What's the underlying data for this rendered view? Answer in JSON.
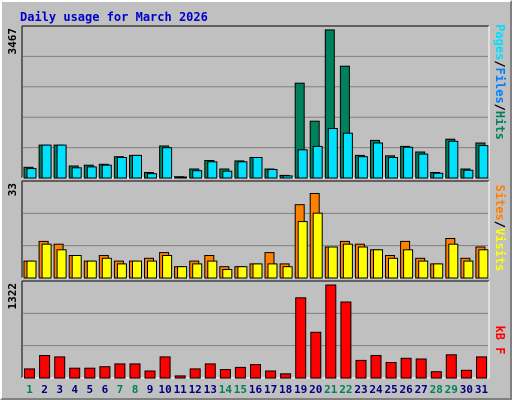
{
  "title": "Daily usage for March 2026",
  "colors": {
    "hits": "#00805C",
    "files": "#0080FF",
    "pages": "#00E0FF",
    "visits": "#FFFF00",
    "sites": "#FF8000",
    "kbytes": "#FF0000",
    "weekend": "#00805C",
    "weekday": "#000080",
    "panel": "#C0C0C0",
    "grid": "#808080"
  },
  "chart_data": [
    {
      "type": "bar",
      "panel": "top",
      "axis_max_label": "3467",
      "ylim": [
        0,
        3467
      ],
      "ylabel": {
        "pages": "Pages",
        "sep1": "/",
        "files": "Files",
        "sep2": "/",
        "hits": "Hits"
      },
      "categories": [
        "1",
        "2",
        "3",
        "4",
        "5",
        "6",
        "7",
        "8",
        "9",
        "10",
        "11",
        "12",
        "13",
        "14",
        "15",
        "16",
        "17",
        "18",
        "19",
        "20",
        "21",
        "22",
        "23",
        "24",
        "25",
        "26",
        "27",
        "28",
        "29",
        "30",
        "31"
      ],
      "series": [
        {
          "name": "Hits",
          "values": [
            250,
            770,
            770,
            280,
            300,
            320,
            500,
            530,
            130,
            750,
            30,
            210,
            410,
            210,
            400,
            480,
            210,
            60,
            2220,
            1330,
            3470,
            2620,
            530,
            880,
            520,
            740,
            610,
            130,
            910,
            210,
            820
          ]
        },
        {
          "name": "Pages",
          "values": [
            220,
            770,
            770,
            240,
            260,
            300,
            480,
            530,
            100,
            710,
            10,
            170,
            380,
            160,
            380,
            480,
            200,
            50,
            660,
            740,
            1160,
            1050,
            500,
            820,
            480,
            720,
            560,
            110,
            860,
            180,
            760
          ]
        }
      ]
    },
    {
      "type": "bar",
      "panel": "middle",
      "axis_max_label": "33",
      "ylim": [
        0,
        33
      ],
      "ylabel": {
        "sites": "Sites",
        "sep": "/",
        "visits": "Visits"
      },
      "categories": [
        "1",
        "2",
        "3",
        "4",
        "5",
        "6",
        "7",
        "8",
        "9",
        "10",
        "11",
        "12",
        "13",
        "14",
        "15",
        "16",
        "17",
        "18",
        "19",
        "20",
        "21",
        "22",
        "23",
        "24",
        "25",
        "26",
        "27",
        "28",
        "29",
        "30",
        "31"
      ],
      "series": [
        {
          "name": "Visits",
          "values": [
            6,
            12,
            10,
            8,
            6,
            7,
            5,
            6,
            6,
            8,
            4,
            5,
            6,
            3,
            4,
            5,
            5,
            4,
            20,
            23,
            11,
            12,
            11,
            10,
            7,
            10,
            6,
            5,
            12,
            6,
            10
          ]
        },
        {
          "name": "Sites",
          "values": [
            6,
            13,
            12,
            8,
            6,
            8,
            6,
            6,
            7,
            9,
            4,
            6,
            8,
            4,
            4,
            5,
            9,
            5,
            26,
            30,
            11,
            13,
            12,
            10,
            8,
            13,
            7,
            5,
            14,
            7,
            11
          ]
        }
      ]
    },
    {
      "type": "bar",
      "panel": "bottom",
      "axis_max_label": "1322",
      "ylim": [
        0,
        1322
      ],
      "ylabel": {
        "kbytes": "kB F"
      },
      "categories": [
        "1",
        "2",
        "3",
        "4",
        "5",
        "6",
        "7",
        "8",
        "9",
        "10",
        "11",
        "12",
        "13",
        "14",
        "15",
        "16",
        "17",
        "18",
        "19",
        "20",
        "21",
        "22",
        "23",
        "24",
        "25",
        "26",
        "27",
        "28",
        "29",
        "30",
        "31"
      ],
      "series": [
        {
          "name": "kB F",
          "values": [
            130,
            320,
            300,
            140,
            140,
            160,
            200,
            200,
            100,
            300,
            30,
            130,
            200,
            120,
            150,
            190,
            100,
            60,
            1140,
            650,
            1322,
            1080,
            250,
            320,
            220,
            280,
            270,
            90,
            330,
            110,
            300
          ]
        }
      ]
    }
  ],
  "weekend_days": [
    1,
    7,
    8,
    14,
    15,
    21,
    22,
    28,
    29
  ]
}
